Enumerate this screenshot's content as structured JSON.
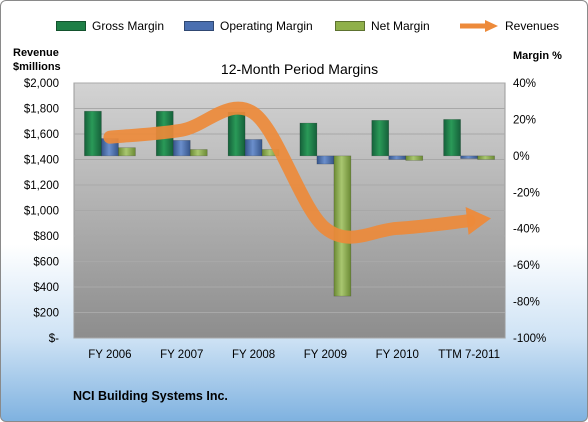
{
  "legend": [
    {
      "label": "Gross Margin",
      "color": "#1e7f46",
      "kind": "bar"
    },
    {
      "label": "Operating Margin",
      "color": "#4a6fb0",
      "kind": "bar"
    },
    {
      "label": "Net Margin",
      "color": "#8fb04a",
      "kind": "bar"
    },
    {
      "label": "Revenues",
      "color": "#ed8a3a",
      "kind": "arrow"
    }
  ],
  "left_axis_title": [
    "Revenue",
    "$millions"
  ],
  "right_axis_title": "Margin %",
  "footer": "NCI Building Systems Inc.",
  "chart_data": {
    "type": "bar",
    "title": "12-Month Period Margins",
    "categories": [
      "FY 2006",
      "FY 2007",
      "FY 2008",
      "FY 2009",
      "FY 2010",
      "TTM 7-2011"
    ],
    "y_left": {
      "label": "Revenue $millions",
      "range": [
        0,
        2000
      ],
      "tick_labels": [
        "$2,000",
        "$1,800",
        "$1,600",
        "$1,400",
        "$1,200",
        "$1,000",
        "$800",
        "$600",
        "$400",
        "$200",
        "$-"
      ]
    },
    "y_right": {
      "label": "Margin %",
      "range": [
        -100,
        40
      ],
      "tick_labels": [
        "40%",
        "20%",
        "0%",
        "-20%",
        "-40%",
        "-60%",
        "-80%",
        "-100%"
      ]
    },
    "series": [
      {
        "name": "Gross Margin",
        "axis": "right",
        "color": "#1e7f46",
        "values": [
          24.5,
          24.5,
          24,
          18,
          19.5,
          20
        ]
      },
      {
        "name": "Operating Margin",
        "axis": "right",
        "color": "#4a6fb0",
        "values": [
          9.5,
          8.5,
          9,
          -4.5,
          -2,
          -1.5
        ]
      },
      {
        "name": "Net Margin",
        "axis": "right",
        "color": "#8fb04a",
        "values": [
          4.5,
          3.5,
          3.5,
          -77,
          -2.5,
          -2
        ]
      },
      {
        "name": "Revenues",
        "axis": "left",
        "type": "line",
        "color": "#ed8a3a",
        "values": [
          1575,
          1630,
          1765,
          860,
          860,
          920
        ]
      }
    ],
    "grid": true,
    "legend_position": "top"
  }
}
